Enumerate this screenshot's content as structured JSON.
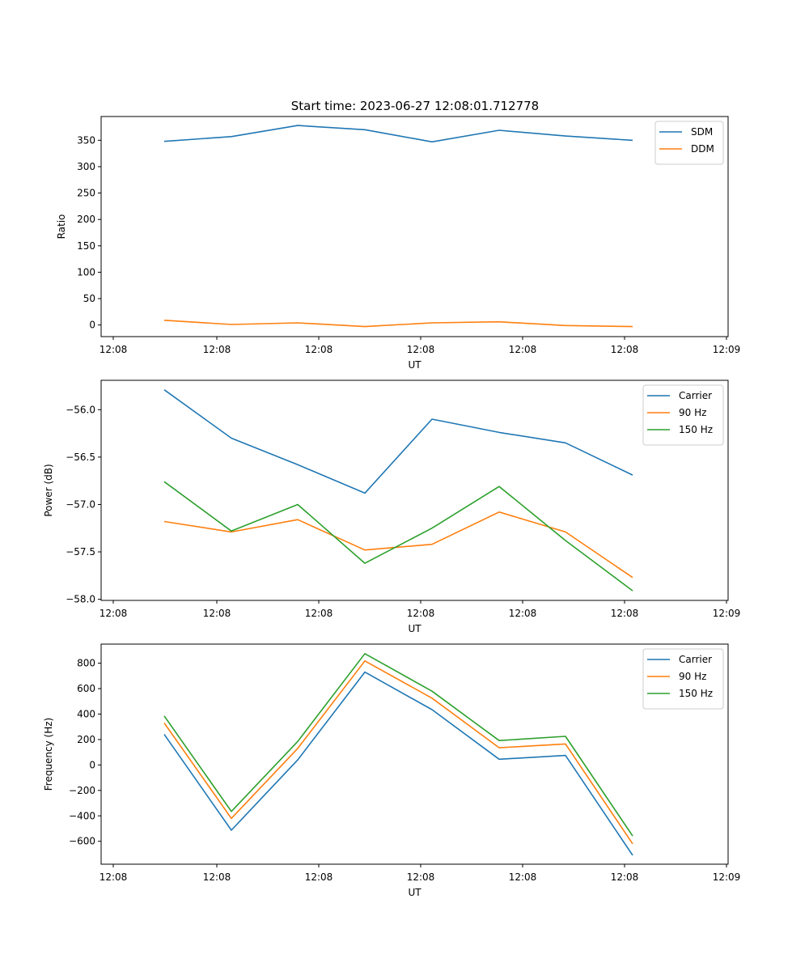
{
  "figure": {
    "title": "Start time: 2023-06-27 12:08:01.712778"
  },
  "chart_data": [
    {
      "type": "line",
      "title": "",
      "xlabel": "UT",
      "ylabel": "Ratio",
      "x_tick_labels": [
        "12:08",
        "12:08",
        "12:08",
        "12:08",
        "12:08",
        "12:08",
        "12:09"
      ],
      "y_ticks": [
        0,
        50,
        100,
        150,
        200,
        250,
        300,
        350
      ],
      "ylim": [
        -22,
        395
      ],
      "grid": false,
      "legend_position": "top-right",
      "series": [
        {
          "name": "SDM",
          "color": "#1f77b4",
          "values": [
            348,
            357,
            378,
            370,
            347,
            369,
            358,
            350
          ]
        },
        {
          "name": "DDM",
          "color": "#ff7f0e",
          "values": [
            9,
            1,
            4,
            -3,
            4,
            6,
            -1,
            -3
          ]
        }
      ]
    },
    {
      "type": "line",
      "title": "",
      "xlabel": "UT",
      "ylabel": "Power (dB)",
      "x_tick_labels": [
        "12:08",
        "12:08",
        "12:08",
        "12:08",
        "12:08",
        "12:08",
        "12:09"
      ],
      "y_ticks": [
        -58.0,
        -57.5,
        -57.0,
        -56.5,
        -56.0
      ],
      "y_tick_labels": [
        "−58.0",
        "−57.5",
        "−57.0",
        "−56.5",
        "−56.0"
      ],
      "ylim": [
        -58.012,
        -55.69
      ],
      "grid": false,
      "legend_position": "top-right",
      "series": [
        {
          "name": "Carrier",
          "color": "#1f77b4",
          "values": [
            -55.79,
            -56.3,
            -56.58,
            -56.88,
            -56.1,
            -56.24,
            -56.35,
            -56.69
          ]
        },
        {
          "name": "90 Hz",
          "color": "#ff7f0e",
          "values": [
            -57.18,
            -57.29,
            -57.16,
            -57.48,
            -57.42,
            -57.08,
            -57.29,
            -57.77
          ]
        },
        {
          "name": "150 Hz",
          "color": "#2ca02c",
          "values": [
            -56.76,
            -57.28,
            -57.0,
            -57.62,
            -57.25,
            -56.81,
            -57.38,
            -57.91
          ]
        }
      ]
    },
    {
      "type": "line",
      "title": "",
      "xlabel": "UT",
      "ylabel": "Frequency (Hz)",
      "x_tick_labels": [
        "12:08",
        "12:08",
        "12:08",
        "12:08",
        "12:08",
        "12:08",
        "12:09"
      ],
      "y_ticks": [
        -600,
        -400,
        -200,
        0,
        200,
        400,
        600,
        800
      ],
      "y_tick_labels": [
        "−600",
        "−400",
        "−200",
        "0",
        "200",
        "400",
        "600",
        "800"
      ],
      "ylim": [
        -780,
        950
      ],
      "grid": false,
      "legend_position": "top-right",
      "series": [
        {
          "name": "Carrier",
          "color": "#1f77b4",
          "values": [
            240,
            -513,
            40,
            730,
            435,
            45,
            75,
            -710
          ]
        },
        {
          "name": "90 Hz",
          "color": "#ff7f0e",
          "values": [
            330,
            -420,
            130,
            818,
            525,
            135,
            165,
            -620
          ]
        },
        {
          "name": "150 Hz",
          "color": "#2ca02c",
          "values": [
            385,
            -365,
            185,
            875,
            580,
            192,
            225,
            -558
          ]
        }
      ]
    }
  ]
}
